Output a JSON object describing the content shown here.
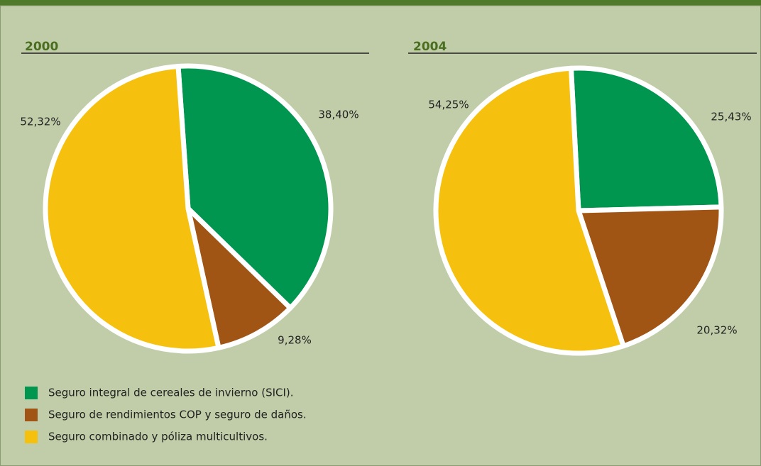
{
  "chart_data": [
    {
      "type": "pie",
      "title": "2000",
      "values": [
        38.4,
        9.28,
        52.32
      ],
      "value_labels": [
        "38,40%",
        "9,28%",
        "52,32%"
      ],
      "colors": [
        "#009650",
        "#a05514",
        "#f5c10e"
      ]
    },
    {
      "type": "pie",
      "title": "2004",
      "values": [
        25.43,
        20.32,
        54.25
      ],
      "value_labels": [
        "25,43%",
        "20,32%",
        "54,25%"
      ],
      "colors": [
        "#009650",
        "#a05514",
        "#f5c10e"
      ]
    }
  ],
  "legend": {
    "labels": [
      "Seguro integral de cereales de invierno (SICI).",
      "Seguro de rendimientos COP y seguro de daños.",
      "Seguro combinado y póliza multicultivos."
    ],
    "colors": [
      "#009650",
      "#a05514",
      "#f5c10e"
    ]
  }
}
